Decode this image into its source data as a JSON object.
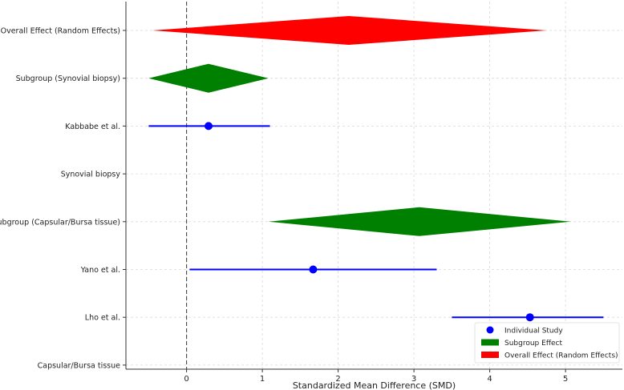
{
  "chart_data": {
    "type": "forest",
    "xlabel": "Standardized Mean Difference (SMD)",
    "xlim": [
      -0.8,
      5.75
    ],
    "xticks": [
      0,
      1,
      2,
      3,
      4,
      5
    ],
    "reference_line": 0,
    "grid": true,
    "rows": [
      "Overall Effect (Random Effects)",
      "Subgroup (Synovial biopsy)",
      "Kabbabe et al.",
      "Synovial biopsy",
      "Subgroup (Capsular/Bursa tissue)",
      "Yano et al.",
      "Lho et al.",
      "Capsular/Bursa tissue"
    ],
    "studies": [
      {
        "label": "Kabbabe et al.",
        "smd": 0.29,
        "ci_low": -0.5,
        "ci_high": 1.1
      },
      {
        "label": "Yano et al.",
        "smd": 1.67,
        "ci_low": 0.04,
        "ci_high": 3.3
      },
      {
        "label": "Lho et al.",
        "smd": 4.53,
        "ci_low": 3.5,
        "ci_high": 5.5
      }
    ],
    "subgroups": [
      {
        "label": "Subgroup (Synovial biopsy)",
        "smd": 0.29,
        "ci_low": -0.5,
        "ci_high": 1.08
      },
      {
        "label": "Subgroup (Capsular/Bursa tissue)",
        "smd": 3.07,
        "ci_low": 1.08,
        "ci_high": 5.07
      }
    ],
    "overall": {
      "label": "Overall Effect (Random Effects)",
      "smd": 2.14,
      "ci_low": -0.45,
      "ci_high": 4.75
    },
    "legend": {
      "position": "lower-right",
      "items": [
        {
          "label": "Individual Study",
          "color": "#0000ff"
        },
        {
          "label": "Subgroup Effect",
          "color": "#008000"
        },
        {
          "label": "Overall Effect (Random Effects)",
          "color": "#ff0000"
        }
      ]
    },
    "colors": {
      "study": "#0000ff",
      "subgroup": "#008000",
      "overall": "#ff0000"
    }
  }
}
